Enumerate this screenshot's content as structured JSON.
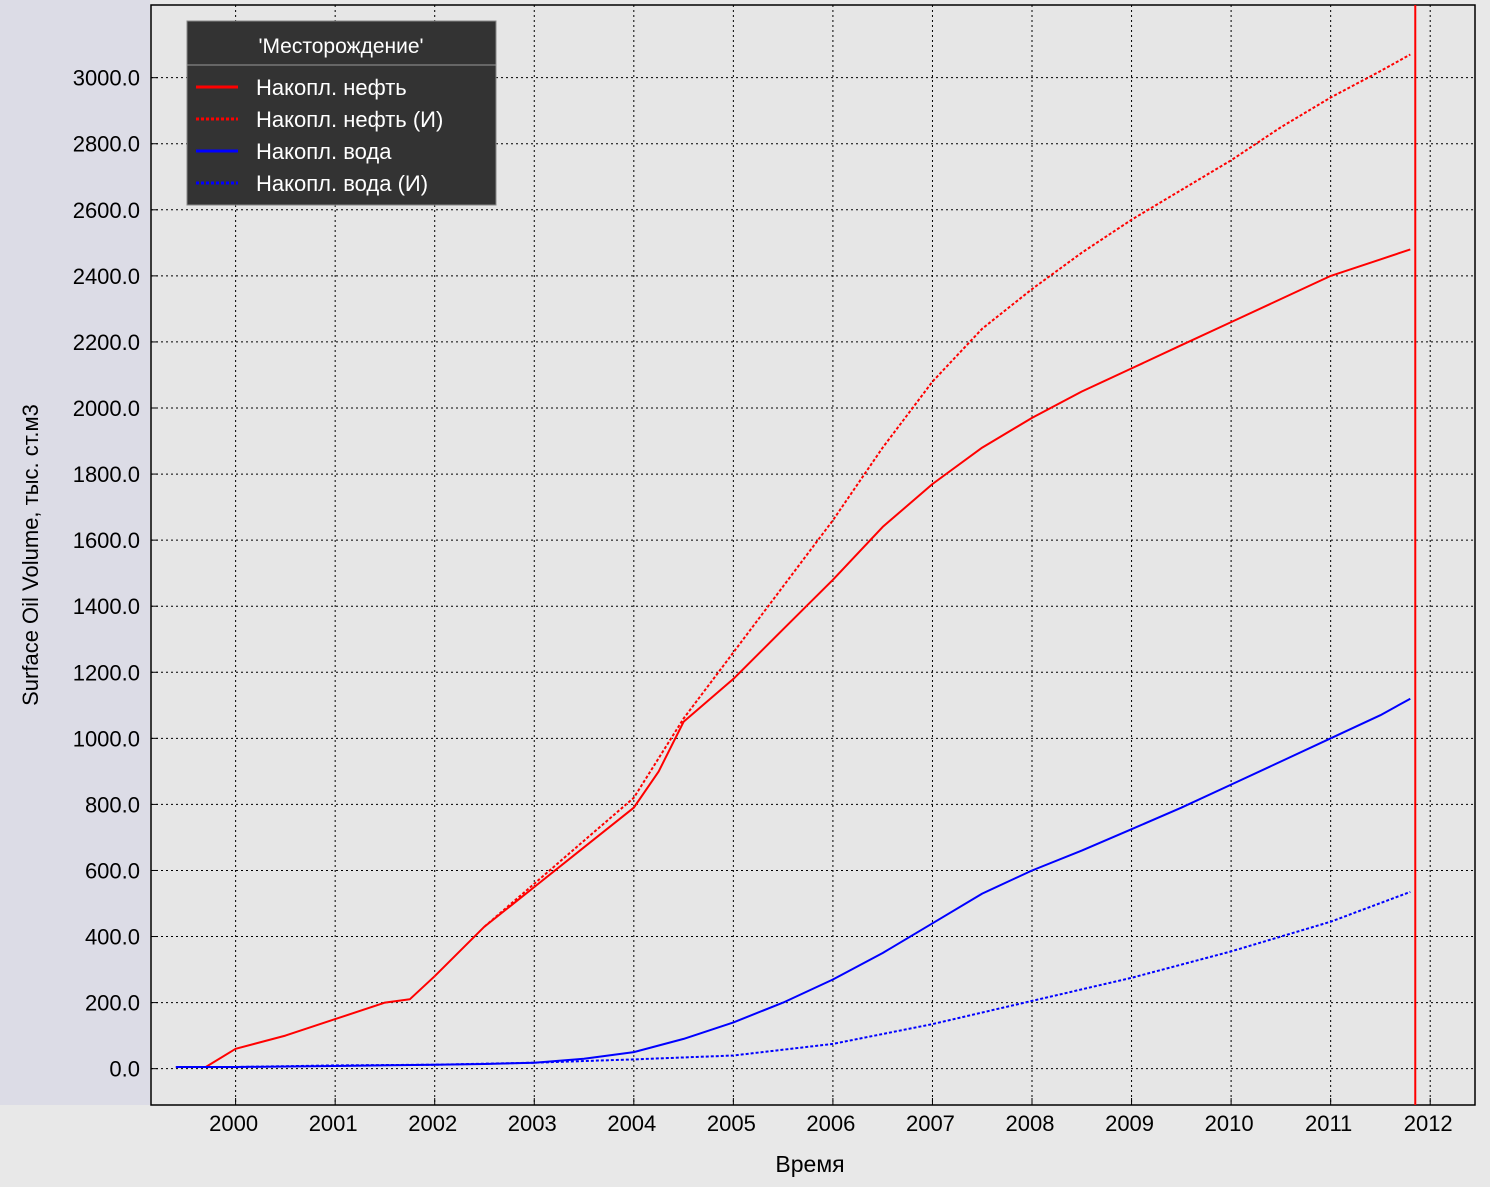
{
  "chart_data": {
    "type": "line",
    "title": "",
    "xlabel": "Время",
    "ylabel": "Surface Oil Volume, тыс. ст.м3",
    "x_unit": "year",
    "xlim": [
      1999.15,
      2012.45
    ],
    "ylim": [
      -110,
      3220
    ],
    "grid": true,
    "x_ticks": [
      2000,
      2001,
      2002,
      2003,
      2004,
      2005,
      2006,
      2007,
      2008,
      2009,
      2010,
      2011,
      2012
    ],
    "x_tick_labels": [
      "2000",
      "2001",
      "2002",
      "2003",
      "2004",
      "2005",
      "2006",
      "2007",
      "2008",
      "2009",
      "2010",
      "2011",
      "2012"
    ],
    "y_ticks": [
      0,
      200,
      400,
      600,
      800,
      1000,
      1200,
      1400,
      1600,
      1800,
      2000,
      2200,
      2400,
      2600,
      2800,
      3000
    ],
    "y_tick_labels": [
      "0.0",
      "200.0",
      "400.0",
      "600.0",
      "800.0",
      "1000.0",
      "1200.0",
      "1400.0",
      "1600.0",
      "1800.0",
      "2000.0",
      "2200.0",
      "2400.0",
      "2600.0",
      "2800.0",
      "3000.0"
    ],
    "marker_line": {
      "x": 2011.85,
      "color": "#ff0000"
    },
    "legend": {
      "title": "'Месторождение'",
      "position": "top-left",
      "entries": [
        {
          "label": "Накопл. нефть",
          "color": "#ff0000",
          "dash": "solid"
        },
        {
          "label": "Накопл. нефть (И)",
          "color": "#ff0000",
          "dash": "dotted"
        },
        {
          "label": "Накопл. вода",
          "color": "#0000ff",
          "dash": "solid"
        },
        {
          "label": "Накопл. вода (И)",
          "color": "#0000ff",
          "dash": "dotted"
        }
      ]
    },
    "series": [
      {
        "name": "Накопл. нефть",
        "color": "#ff0000",
        "dash": "solid",
        "x": [
          1999.4,
          1999.7,
          2000.0,
          2000.5,
          2001.0,
          2001.5,
          2001.75,
          2002.0,
          2002.5,
          2003.0,
          2003.5,
          2004.0,
          2004.25,
          2004.5,
          2005.0,
          2005.5,
          2006.0,
          2006.5,
          2007.0,
          2007.5,
          2008.0,
          2008.5,
          2009.0,
          2009.5,
          2010.0,
          2010.5,
          2011.0,
          2011.5,
          2011.8
        ],
        "y": [
          5,
          5,
          60,
          100,
          150,
          200,
          210,
          280,
          430,
          550,
          670,
          790,
          900,
          1050,
          1180,
          1330,
          1480,
          1640,
          1770,
          1880,
          1970,
          2050,
          2120,
          2190,
          2260,
          2330,
          2400,
          2450,
          2480
        ]
      },
      {
        "name": "Накопл. нефть (И)",
        "color": "#ff0000",
        "dash": "dotted",
        "x": [
          2002.5,
          2003.0,
          2003.5,
          2004.0,
          2004.5,
          2005.0,
          2005.5,
          2006.0,
          2006.5,
          2007.0,
          2007.5,
          2008.0,
          2008.5,
          2009.0,
          2009.5,
          2010.0,
          2010.5,
          2011.0,
          2011.5,
          2011.8
        ],
        "y": [
          430,
          560,
          690,
          820,
          1060,
          1260,
          1460,
          1660,
          1880,
          2080,
          2240,
          2360,
          2470,
          2570,
          2660,
          2750,
          2850,
          2940,
          3020,
          3070
        ]
      },
      {
        "name": "Накопл. вода",
        "color": "#0000ff",
        "dash": "solid",
        "x": [
          1999.4,
          2000.0,
          2001.0,
          2002.0,
          2002.5,
          2003.0,
          2003.5,
          2004.0,
          2004.5,
          2005.0,
          2005.5,
          2006.0,
          2006.5,
          2007.0,
          2007.5,
          2008.0,
          2008.5,
          2009.0,
          2009.5,
          2010.0,
          2010.5,
          2011.0,
          2011.5,
          2011.8
        ],
        "y": [
          5,
          5,
          8,
          12,
          14,
          18,
          30,
          50,
          90,
          140,
          200,
          270,
          350,
          440,
          530,
          600,
          660,
          725,
          790,
          860,
          930,
          1000,
          1070,
          1120
        ]
      },
      {
        "name": "Накопл. вода (И)",
        "color": "#0000ff",
        "dash": "dotted",
        "x": [
          1999.4,
          2000.0,
          2001.0,
          2002.0,
          2003.0,
          2004.0,
          2005.0,
          2006.0,
          2007.0,
          2008.0,
          2009.0,
          2010.0,
          2011.0,
          2011.8
        ],
        "y": [
          5,
          5,
          10,
          12,
          18,
          28,
          40,
          75,
          135,
          205,
          275,
          355,
          445,
          535
        ]
      }
    ]
  }
}
